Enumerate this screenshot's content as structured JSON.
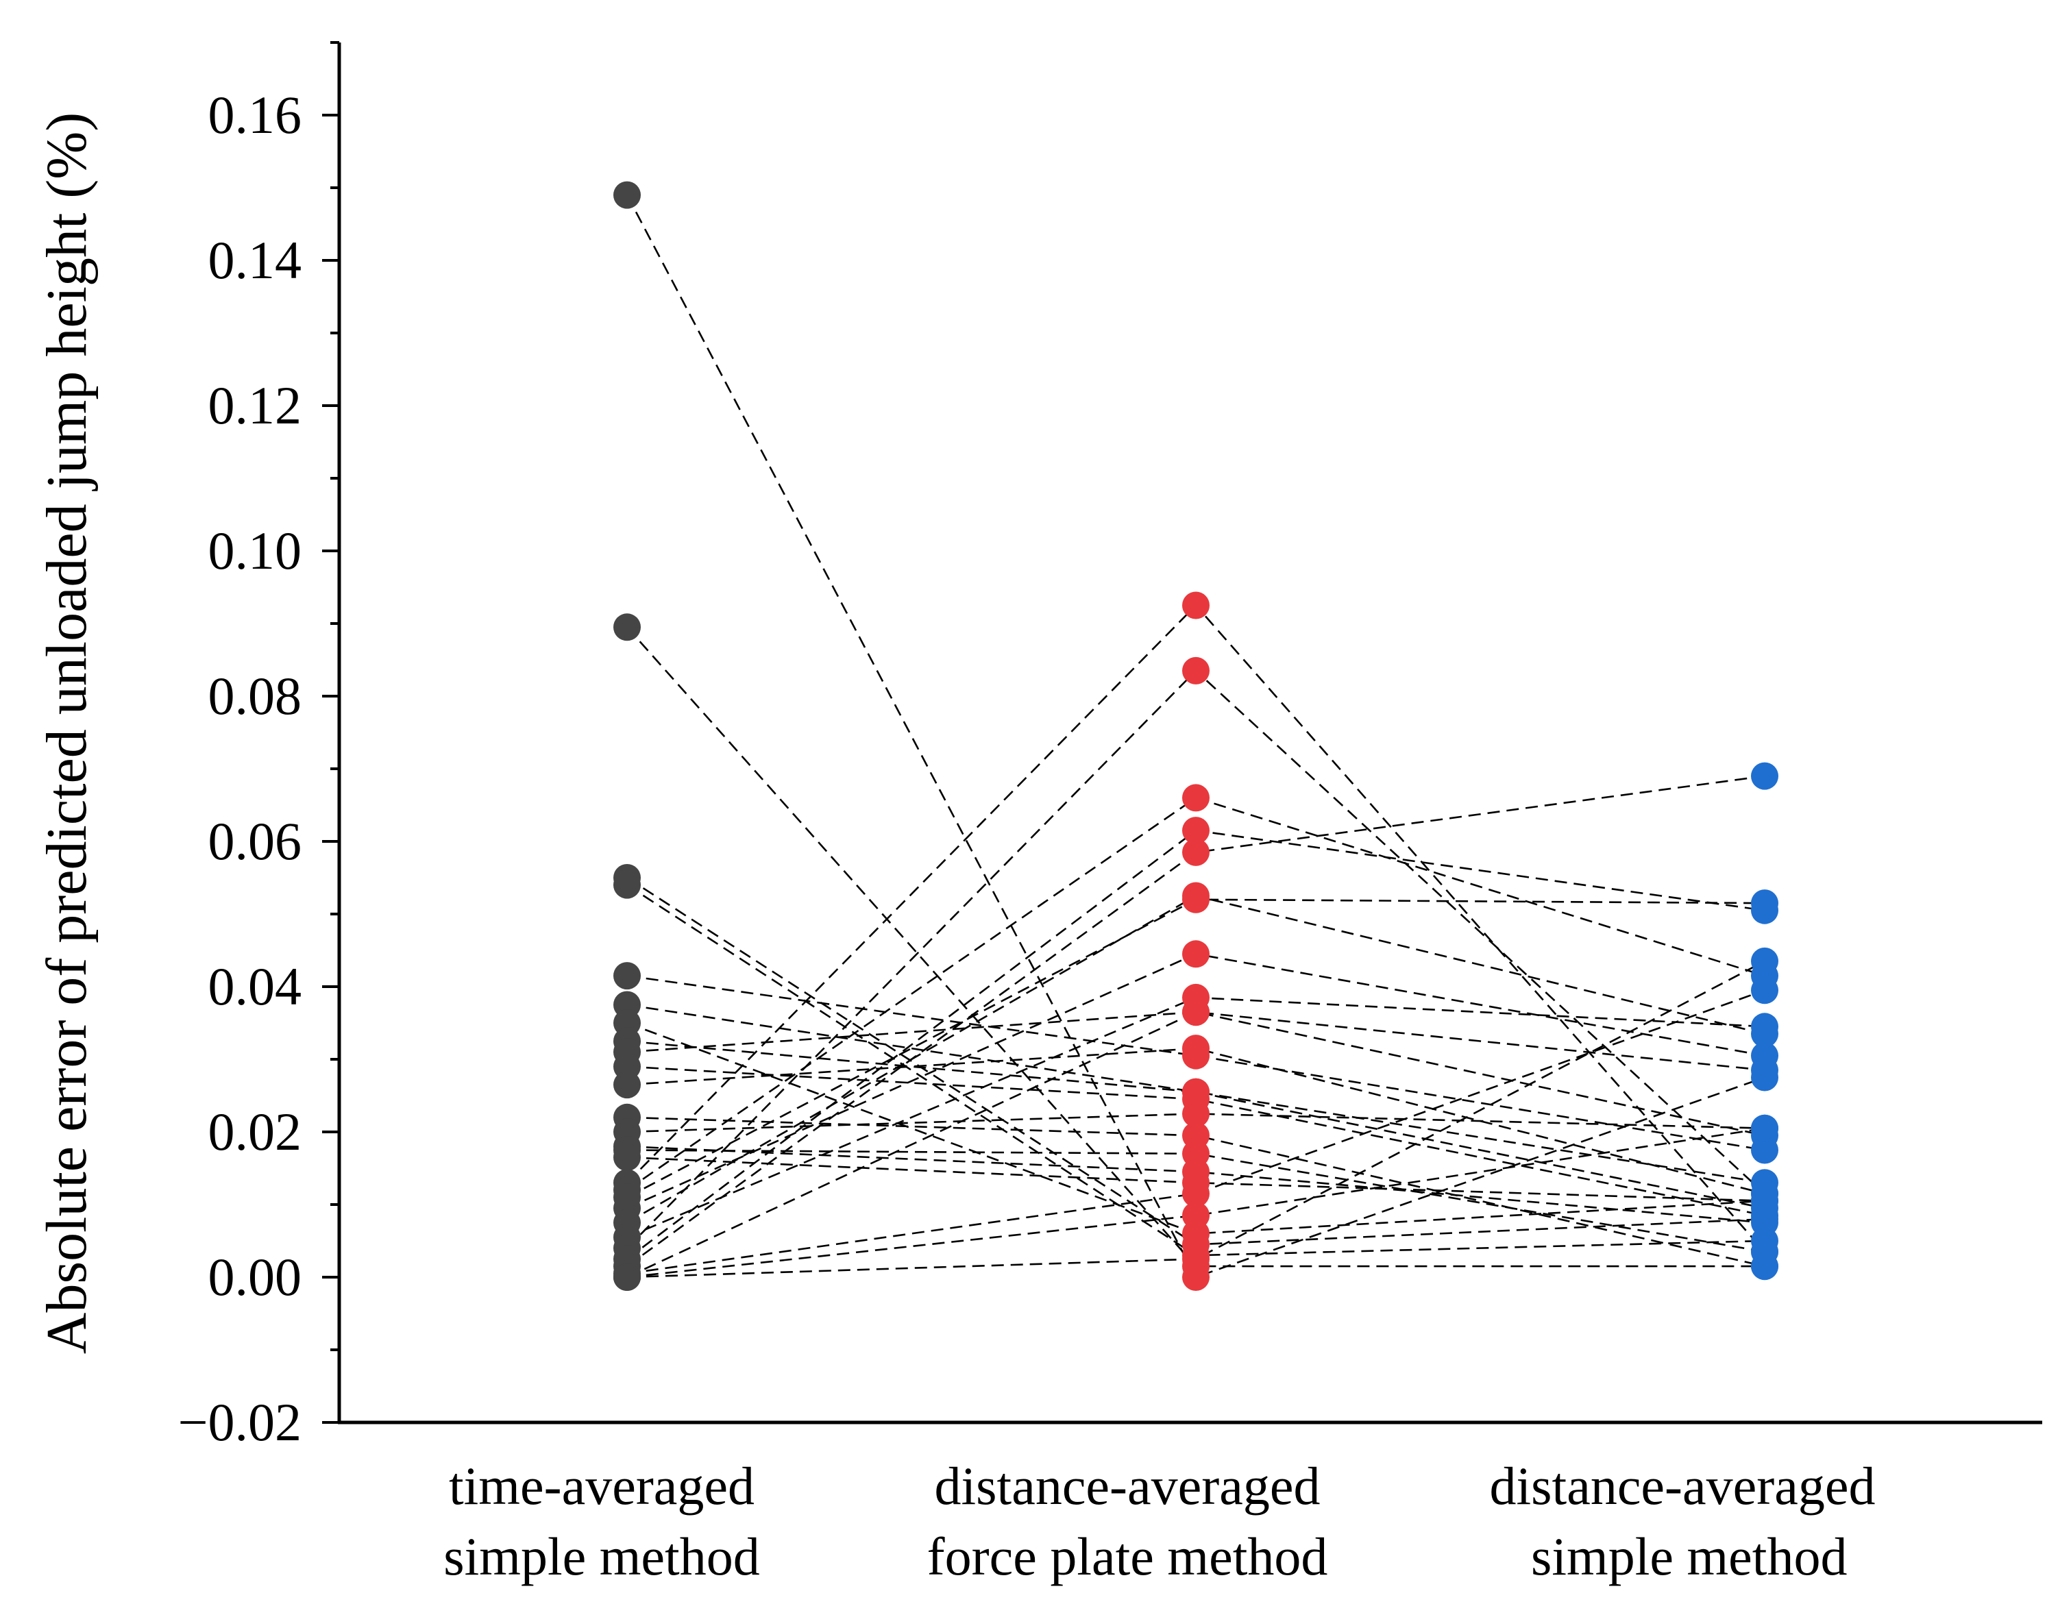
{
  "chart_data": {
    "type": "scatter",
    "title": "",
    "xlabel": "",
    "ylabel": "Absolute error of predicted unloaded jump height (%)",
    "ylim": [
      -0.02,
      0.17
    ],
    "yticks": [
      -0.02,
      0.0,
      0.02,
      0.04,
      0.06,
      0.08,
      0.1,
      0.12,
      0.14,
      0.16
    ],
    "ytick_labels": [
      "−0.02",
      "0.00",
      "0.02",
      "0.04",
      "0.06",
      "0.08",
      "0.10",
      "0.12",
      "0.14",
      "0.16"
    ],
    "categories": [
      {
        "line1": "time-averaged",
        "line2": "simple method"
      },
      {
        "line1": "distance-averaged",
        "line2": "force plate method"
      },
      {
        "line1": "distance-averaged",
        "line2": " simple method"
      }
    ],
    "series": [
      {
        "name": "time-averaged simple method",
        "color": "#454545",
        "values": [
          0.149,
          0.0895,
          0.055,
          0.054,
          0.0415,
          0.0375,
          0.035,
          0.0325,
          0.031,
          0.029,
          0.0265,
          0.022,
          0.02,
          0.018,
          0.0175,
          0.0165,
          0.013,
          0.012,
          0.011,
          0.0095,
          0.0075,
          0.0055,
          0.004,
          0.0025,
          0.0015,
          0.0005,
          0.0,
          0.0,
          0.0
        ]
      },
      {
        "name": "distance-averaged force plate method",
        "color": "#e8383d",
        "values": [
          0.0,
          0.0015,
          0.0045,
          0.003,
          0.0305,
          0.0255,
          0.006,
          0.0255,
          0.0365,
          0.0245,
          0.0315,
          0.0195,
          0.0225,
          0.0145,
          0.017,
          0.013,
          0.0925,
          0.066,
          0.052,
          0.0445,
          0.0525,
          0.0385,
          0.0835,
          0.0615,
          0.0585,
          0.0115,
          0.0085,
          0.0025,
          0.0365
        ]
      },
      {
        "name": "distance-averaged simple method",
        "color": "#1f6fd1",
        "values": [
          0.0275,
          0.0015,
          0.008,
          0.005,
          0.0175,
          0.0095,
          0.0105,
          0.013,
          0.0195,
          0.0085,
          0.0115,
          0.0015,
          0.0205,
          0.0075,
          0.0035,
          0.0105,
          0.0035,
          0.0415,
          0.0515,
          0.0305,
          0.0335,
          0.0345,
          0.0115,
          0.0505,
          0.069,
          0.0395,
          0.0205,
          0.0435,
          0.0285
        ]
      }
    ]
  }
}
